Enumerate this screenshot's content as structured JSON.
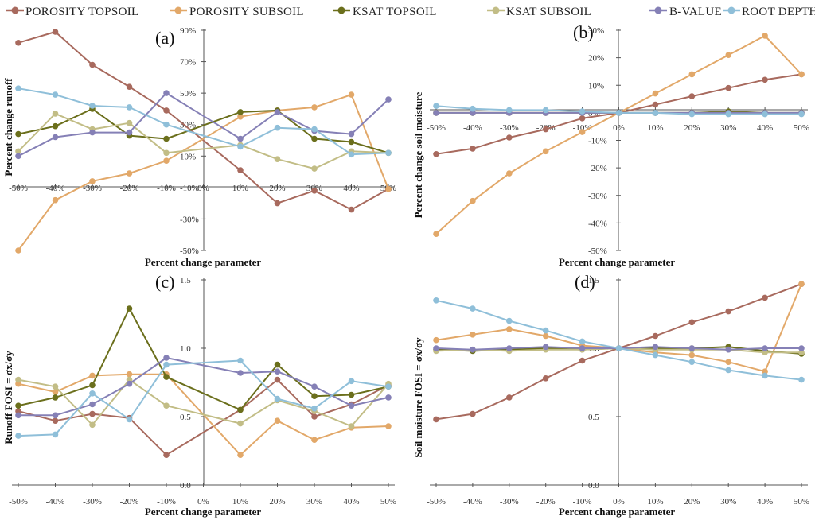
{
  "legend": [
    {
      "name": "POROSITY TOPSOIL",
      "color": "#a86a5e"
    },
    {
      "name": "POROSITY SUBSOIL",
      "color": "#e2a869"
    },
    {
      "name": "KSAT TOPSOIL",
      "color": "#6b6f1c"
    },
    {
      "name": "KSAT SUBSOIL",
      "color": "#c2bd86"
    },
    {
      "name": "B-VALUE",
      "color": "#8580b6"
    },
    {
      "name": "ROOT DEPTH",
      "color": "#8fbfd9"
    }
  ],
  "chart_data": [
    {
      "panel": "(a)",
      "type": "line",
      "xlabel": "Percent change parameter",
      "ylabel": "Percent change runoff",
      "x": [
        -50,
        -40,
        -30,
        -20,
        -10,
        10,
        20,
        30,
        40,
        50
      ],
      "xtick_labels": [
        "-50%",
        "-40%",
        "-30%",
        "-20%",
        "-10%",
        "0%",
        "10%",
        "20%",
        "30%",
        "40%",
        "50%"
      ],
      "ytick_labels": [
        "-50%",
        "-30%",
        "-10%",
        "10%",
        "30%",
        "50%",
        "70%",
        "90%"
      ],
      "ylim": [
        -50,
        90
      ],
      "series": [
        {
          "name": "POROSITY TOPSOIL",
          "values": [
            82,
            89,
            68,
            54,
            39,
            1,
            -20,
            -12,
            -24,
            -11
          ]
        },
        {
          "name": "POROSITY SUBSOIL",
          "values": [
            -50,
            -18,
            -6,
            -1,
            7,
            35,
            39,
            41,
            49,
            -11
          ]
        },
        {
          "name": "KSAT TOPSOIL",
          "values": [
            24,
            29,
            40,
            23,
            21,
            38,
            39,
            21,
            19,
            12
          ]
        },
        {
          "name": "KSAT SUBSOIL",
          "values": [
            13,
            37,
            27,
            31,
            12,
            17,
            8,
            2,
            13,
            12
          ]
        },
        {
          "name": "B-VALUE",
          "values": [
            10,
            22,
            25,
            25,
            50,
            21,
            38,
            26,
            24,
            46
          ]
        },
        {
          "name": "ROOT DEPTH",
          "values": [
            53,
            49,
            42,
            41,
            30,
            16,
            28,
            27,
            11,
            12
          ]
        }
      ]
    },
    {
      "panel": "(b)",
      "type": "line",
      "xlabel": "Percent change parameter",
      "ylabel": "Percent change soil moisture",
      "x": [
        -50,
        -40,
        -30,
        -20,
        -10,
        0,
        10,
        20,
        30,
        40,
        50
      ],
      "xtick_labels": [
        "-50%",
        "-40%",
        "-30%",
        "-20%",
        "-10%",
        "0%",
        "10%",
        "20%",
        "30%",
        "40%",
        "50%"
      ],
      "ytick_labels": [
        "-50%",
        "-40%",
        "-30%",
        "-20%",
        "-10%",
        "0%",
        "10%",
        "20%",
        "30%"
      ],
      "ylim": [
        -50,
        30
      ],
      "series": [
        {
          "name": "POROSITY TOPSOIL",
          "values": [
            -15,
            -13,
            -9,
            -6,
            -2,
            0,
            3,
            6,
            9,
            12,
            14
          ]
        },
        {
          "name": "POROSITY SUBSOIL",
          "values": [
            -44,
            -32,
            -22,
            -14,
            -7,
            0,
            7,
            14,
            21,
            28,
            14
          ]
        },
        {
          "name": "KSAT TOPSOIL",
          "values": [
            0,
            0,
            0,
            0,
            0,
            0,
            0,
            0,
            0.5,
            0,
            0
          ]
        },
        {
          "name": "KSAT SUBSOIL",
          "values": [
            0,
            0,
            0,
            0,
            0,
            0,
            0,
            0,
            0,
            0,
            0
          ]
        },
        {
          "name": "B-VALUE",
          "values": [
            0,
            0,
            0,
            0,
            0,
            0,
            0,
            0,
            0,
            0,
            0
          ]
        },
        {
          "name": "ROOT DEPTH",
          "values": [
            2.5,
            1.5,
            1,
            1,
            0.5,
            0,
            0,
            -0.5,
            -0.5,
            -0.5,
            -0.5
          ]
        }
      ]
    },
    {
      "panel": "(c)",
      "type": "line",
      "xlabel": "Percent change parameter",
      "ylabel": "Runoff FOSI = σx/σy",
      "x": [
        -50,
        -40,
        -30,
        -20,
        -10,
        10,
        20,
        30,
        40,
        50
      ],
      "xtick_labels": [
        "-50%",
        "-40%",
        "-30%",
        "-20%",
        "-10%",
        "0%",
        "10%",
        "20%",
        "30%",
        "40%",
        "50%"
      ],
      "ytick_labels": [
        "0.0",
        "0.5",
        "1.0",
        "1.5"
      ],
      "ylim": [
        0,
        1.5
      ],
      "series": [
        {
          "name": "POROSITY TOPSOIL",
          "values": [
            0.54,
            0.47,
            0.52,
            0.49,
            0.22,
            0.55,
            0.77,
            0.5,
            0.59,
            0.73
          ]
        },
        {
          "name": "POROSITY SUBSOIL",
          "values": [
            0.74,
            0.68,
            0.8,
            0.81,
            0.81,
            0.22,
            0.47,
            0.33,
            0.42,
            0.43
          ]
        },
        {
          "name": "KSAT TOPSOIL",
          "values": [
            0.58,
            0.64,
            0.73,
            1.29,
            0.79,
            0.55,
            0.88,
            0.65,
            0.66,
            0.72
          ]
        },
        {
          "name": "KSAT SUBSOIL",
          "values": [
            0.77,
            0.72,
            0.44,
            0.77,
            0.58,
            0.45,
            0.62,
            0.54,
            0.43,
            0.74
          ]
        },
        {
          "name": "B-VALUE",
          "values": [
            0.51,
            0.51,
            0.59,
            0.74,
            0.93,
            0.82,
            0.83,
            0.72,
            0.58,
            0.64
          ]
        },
        {
          "name": "ROOT DEPTH",
          "values": [
            0.36,
            0.37,
            0.67,
            0.48,
            0.88,
            0.91,
            0.63,
            0.56,
            0.76,
            0.72
          ]
        }
      ]
    },
    {
      "panel": "(d)",
      "type": "line",
      "xlabel": "Percent change parameter",
      "ylabel": "Soil moisture FOSI = σx/σy",
      "x": [
        -50,
        -40,
        -30,
        -20,
        -10,
        0,
        10,
        20,
        30,
        40,
        50
      ],
      "xtick_labels": [
        "-50%",
        "-40%",
        "-30%",
        "-20%",
        "-10%",
        "0%",
        "10%",
        "20%",
        "30%",
        "40%",
        "50%"
      ],
      "ytick_labels": [
        "0.0",
        "0.5",
        "1.0",
        "1.5"
      ],
      "ylim": [
        0,
        1.5
      ],
      "series": [
        {
          "name": "POROSITY TOPSOIL",
          "values": [
            0.48,
            0.52,
            0.64,
            0.78,
            0.91,
            1.0,
            1.09,
            1.19,
            1.27,
            1.37,
            1.47
          ]
        },
        {
          "name": "POROSITY SUBSOIL",
          "values": [
            1.06,
            1.1,
            1.14,
            1.09,
            1.02,
            1.0,
            0.97,
            0.95,
            0.9,
            0.83,
            1.47
          ]
        },
        {
          "name": "KSAT TOPSOIL",
          "values": [
            0.99,
            0.98,
            0.99,
            1.0,
            0.99,
            1.0,
            1.0,
            1.0,
            1.01,
            0.98,
            0.96
          ]
        },
        {
          "name": "KSAT SUBSOIL",
          "values": [
            0.98,
            0.99,
            0.98,
            0.99,
            0.99,
            1.0,
            0.99,
            0.99,
            0.99,
            0.97,
            0.97
          ]
        },
        {
          "name": "B-VALUE",
          "values": [
            1.0,
            0.99,
            1.0,
            1.01,
            1.0,
            1.0,
            1.01,
            1.0,
            0.99,
            1.0,
            1.0
          ]
        },
        {
          "name": "ROOT DEPTH",
          "values": [
            1.35,
            1.29,
            1.2,
            1.13,
            1.05,
            1.0,
            0.95,
            0.9,
            0.84,
            0.8,
            0.77
          ]
        }
      ]
    }
  ]
}
